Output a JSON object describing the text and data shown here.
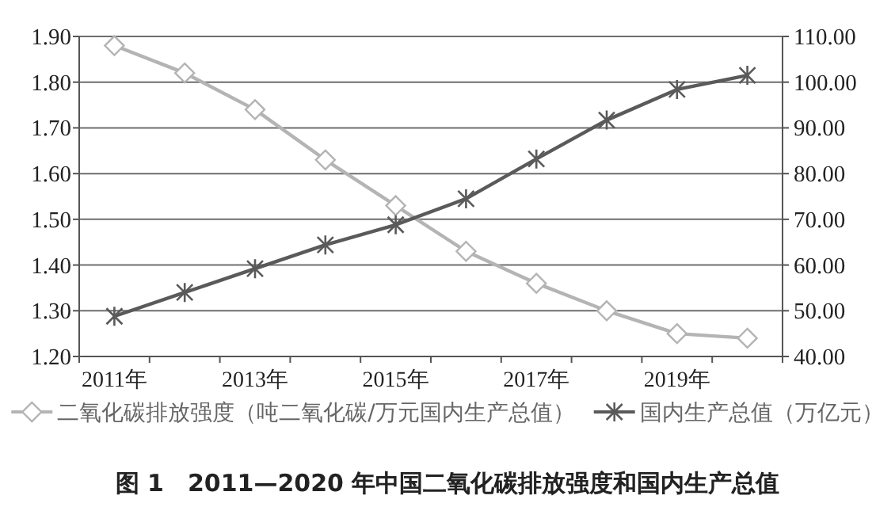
{
  "chart_data": {
    "type": "line",
    "title": "图 1　2011—2020 年中国二氧化碳排放强度和国内生产总值",
    "categories": [
      "2011年",
      null,
      "2013年",
      null,
      "2015年",
      null,
      "2017年",
      null,
      "2019年",
      null
    ],
    "series": [
      {
        "name": "二氧化碳排放强度（吨二氧化碳/万元国内生产总值）",
        "color": "#b4b4b4",
        "marker": "diamond",
        "values": [
          1.88,
          1.82,
          1.74,
          1.63,
          1.53,
          1.43,
          1.36,
          1.3,
          1.25,
          1.24
        ]
      },
      {
        "name": "国内生产总值（万亿元）",
        "color": "#5a5a5a",
        "marker": "cross",
        "axis": "y2",
        "values": [
          48.8,
          54.0,
          59.2,
          64.4,
          68.8,
          74.5,
          83.2,
          91.7,
          98.4,
          101.5
        ]
      }
    ],
    "ylim": [
      1.2,
      1.9
    ],
    "yticks": [
      {
        "value": 1.2,
        "label": "1.20"
      },
      {
        "value": 1.3,
        "label": "1.30"
      },
      {
        "value": 1.4,
        "label": "1.40"
      },
      {
        "value": 1.5,
        "label": "1.50"
      },
      {
        "value": 1.6,
        "label": "1.60"
      },
      {
        "value": 1.7,
        "label": "1.70"
      },
      {
        "value": 1.8,
        "label": "1.80"
      },
      {
        "value": 1.9,
        "label": "1.90"
      }
    ],
    "y2lim": [
      40,
      110
    ],
    "y2ticks": [
      {
        "value": 40,
        "label": "40.00"
      },
      {
        "value": 50,
        "label": "50.00"
      },
      {
        "value": 60,
        "label": "60.00"
      },
      {
        "value": 70,
        "label": "70.00"
      },
      {
        "value": 80,
        "label": "80.00"
      },
      {
        "value": 90,
        "label": "90.00"
      },
      {
        "value": 100,
        "label": "100.00"
      },
      {
        "value": 110,
        "label": "110.00"
      }
    ],
    "grid": "y",
    "legend": "bottom",
    "line_style": "solid"
  }
}
